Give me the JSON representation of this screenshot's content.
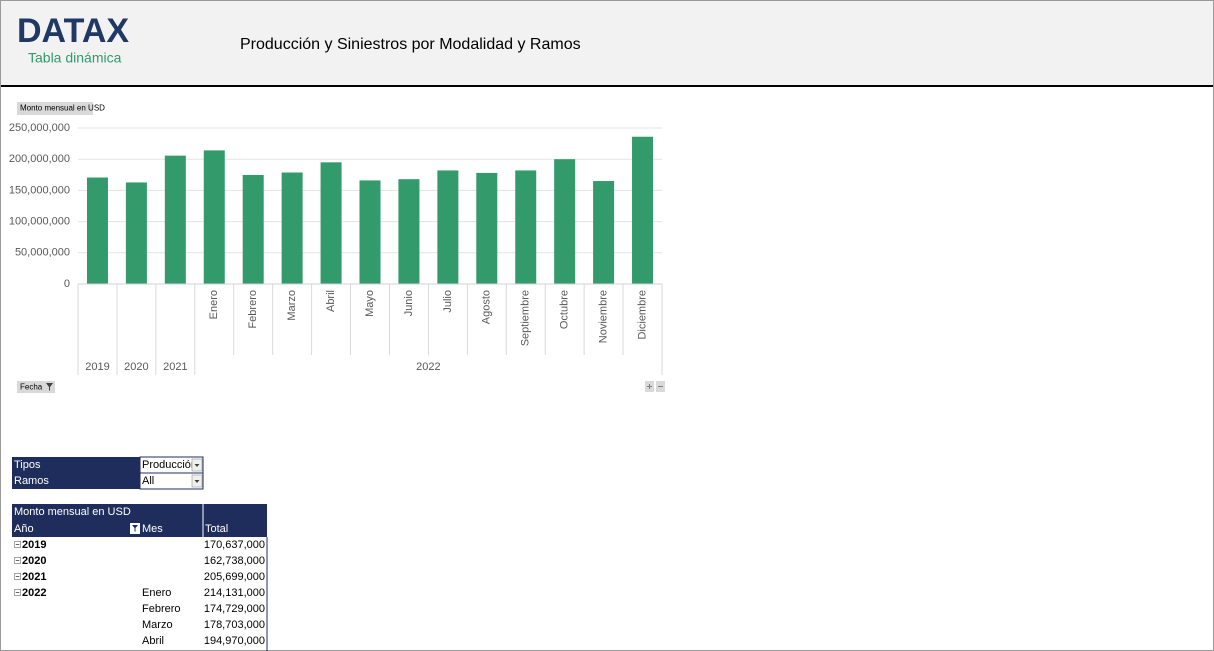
{
  "header": {
    "logo": "DATAX",
    "subtitle": "Tabla dinámica",
    "title": "Producción y Siniestros por Modalidad y Ramos"
  },
  "chart_data": {
    "type": "bar",
    "value_field": "Monto mensual en USD",
    "axis_field": "Fecha",
    "categories": [
      null,
      null,
      null,
      "Enero",
      "Febrero",
      "Marzo",
      "Abril",
      "Mayo",
      "Junio",
      "Julio",
      "Agosto",
      "Septiembre",
      "Octubre",
      "Noviembre",
      "Diciembre"
    ],
    "category_groups": [
      {
        "label": "2019",
        "span": 1
      },
      {
        "label": "2020",
        "span": 1
      },
      {
        "label": "2021",
        "span": 1
      },
      {
        "label": "2022",
        "span": 12
      }
    ],
    "values": [
      170637000,
      162738000,
      205699000,
      214131000,
      174729000,
      178703000,
      194970000,
      166000000,
      168000000,
      182000000,
      178000000,
      182000000,
      200000000,
      165000000,
      236000000
    ],
    "color": "#339a6c",
    "ylim": [
      0,
      250000000
    ],
    "yticks": [
      0,
      {
        "value": 50000000,
        "label": "50,000,000"
      },
      {
        "value": 100000000,
        "label": "100,000,000"
      },
      {
        "value": 150000000,
        "label": "150,000,000"
      },
      {
        "value": 200000000,
        "label": "200,000,000"
      },
      {
        "value": 250000000,
        "label": "250,000,000"
      }
    ],
    "grid": true
  },
  "filters": [
    {
      "label": "Tipos",
      "value": "Producción"
    },
    {
      "label": "Ramos",
      "value": "All"
    }
  ],
  "table": {
    "title": "Monto mensual en USD",
    "columns": [
      "Año",
      "Mes",
      "Total"
    ],
    "rows": [
      {
        "year": "2019",
        "total": "170,637,000"
      },
      {
        "year": "2020",
        "total": "162,738,000"
      },
      {
        "year": "2021",
        "total": "205,699,000"
      },
      {
        "year": "2022",
        "month": "Enero",
        "total": "214,131,000"
      },
      {
        "month": "Febrero",
        "total": "174,729,000"
      },
      {
        "month": "Marzo",
        "total": "178,703,000"
      },
      {
        "month": "Abril",
        "total": "194,970,000"
      }
    ]
  }
}
